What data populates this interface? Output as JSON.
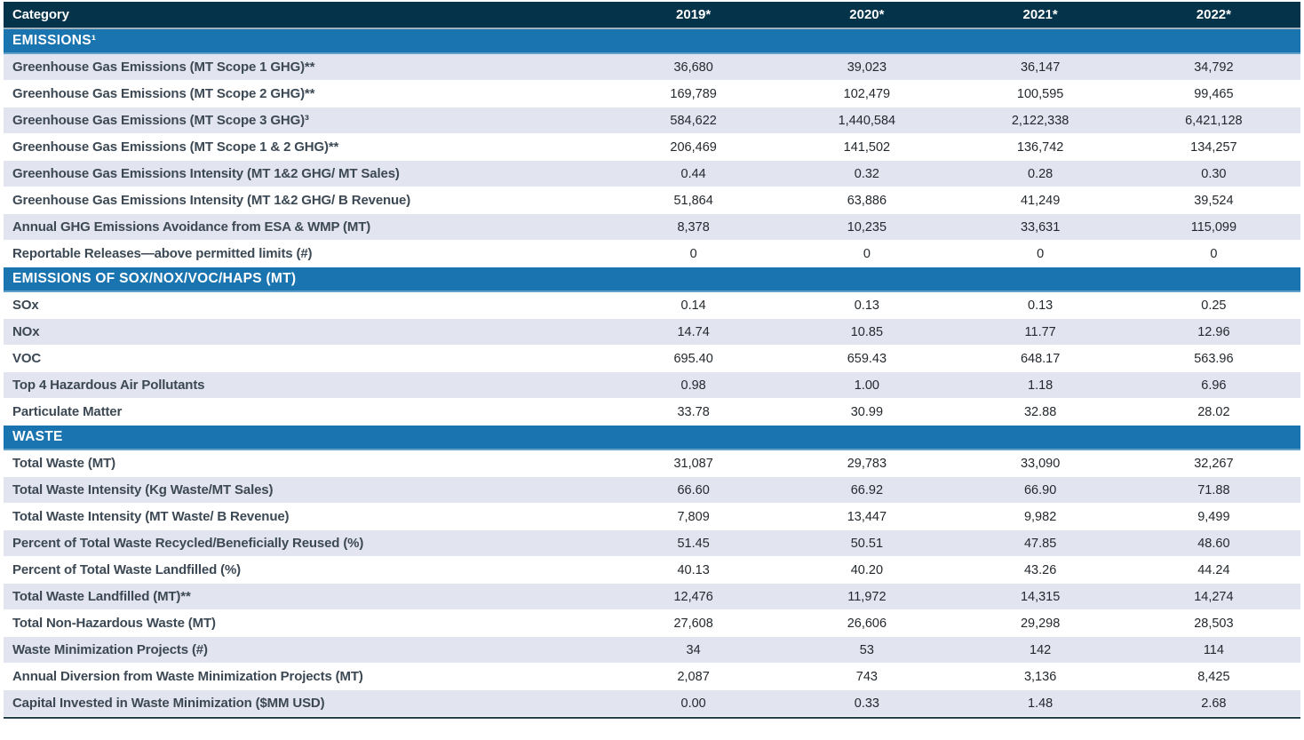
{
  "colors": {
    "header_bg": "#04334a",
    "section_bg": "#1a74af",
    "row_shaded_bg": "#e2e4ef",
    "row_plain_bg": "#ffffff",
    "header_text": "#ffffff",
    "label_text": "#3c4954",
    "value_text": "#23292e",
    "bottom_border": "#23424f"
  },
  "table": {
    "columns": [
      {
        "label": "Category"
      },
      {
        "label": "2019*"
      },
      {
        "label": "2020*"
      },
      {
        "label": "2021*"
      },
      {
        "label": "2022*"
      }
    ],
    "rows": [
      {
        "type": "section",
        "label": "EMISSIONS¹"
      },
      {
        "type": "data",
        "label": "Greenhouse Gas Emissions (MT Scope 1 GHG)**",
        "values": [
          "36,680",
          "39,023",
          "36,147",
          "34,792"
        ]
      },
      {
        "type": "data",
        "label": "Greenhouse Gas Emissions (MT Scope 2 GHG)**",
        "values": [
          "169,789",
          "102,479",
          "100,595",
          "99,465"
        ]
      },
      {
        "type": "data",
        "label": "Greenhouse Gas Emissions (MT Scope 3 GHG)³",
        "values": [
          "584,622",
          "1,440,584",
          "2,122,338",
          "6,421,128"
        ]
      },
      {
        "type": "data",
        "label": "Greenhouse Gas Emissions (MT Scope 1 & 2 GHG)**",
        "values": [
          "206,469",
          "141,502",
          "136,742",
          "134,257"
        ]
      },
      {
        "type": "data",
        "label": "Greenhouse Gas Emissions Intensity (MT 1&2 GHG/ MT Sales)",
        "values": [
          "0.44",
          "0.32",
          "0.28",
          "0.30"
        ]
      },
      {
        "type": "data",
        "label": "Greenhouse Gas Emissions Intensity (MT 1&2 GHG/ B Revenue)",
        "values": [
          "51,864",
          "63,886",
          "41,249",
          "39,524"
        ]
      },
      {
        "type": "data",
        "label": "Annual GHG Emissions Avoidance from ESA & WMP (MT)",
        "values": [
          "8,378",
          "10,235",
          "33,631",
          "115,099"
        ]
      },
      {
        "type": "data",
        "label": "Reportable Releases—above permitted limits (#)",
        "values": [
          "0",
          "0",
          "0",
          "0"
        ]
      },
      {
        "type": "section",
        "label": "EMISSIONS OF SOX/NOX/VOC/HAPS (MT)"
      },
      {
        "type": "data",
        "label": "SOx",
        "values": [
          "0.14",
          "0.13",
          "0.13",
          "0.25"
        ]
      },
      {
        "type": "data",
        "label": "NOx",
        "values": [
          "14.74",
          "10.85",
          "11.77",
          "12.96"
        ]
      },
      {
        "type": "data",
        "label": "VOC",
        "values": [
          "695.40",
          "659.43",
          "648.17",
          "563.96"
        ]
      },
      {
        "type": "data",
        "label": "Top 4 Hazardous Air Pollutants",
        "values": [
          "0.98",
          "1.00",
          "1.18",
          "6.96"
        ]
      },
      {
        "type": "data",
        "label": "Particulate Matter",
        "values": [
          "33.78",
          "30.99",
          "32.88",
          "28.02"
        ]
      },
      {
        "type": "section",
        "label": "WASTE"
      },
      {
        "type": "data",
        "label": "Total Waste (MT)",
        "values": [
          "31,087",
          "29,783",
          "33,090",
          "32,267"
        ]
      },
      {
        "type": "data",
        "label": "Total Waste Intensity (Kg Waste/MT Sales)",
        "values": [
          "66.60",
          "66.92",
          "66.90",
          "71.88"
        ]
      },
      {
        "type": "data",
        "label": "Total Waste Intensity (MT Waste/ B Revenue)",
        "values": [
          "7,809",
          "13,447",
          "9,982",
          "9,499"
        ]
      },
      {
        "type": "data",
        "label": "Percent of Total Waste Recycled/Beneficially Reused (%)",
        "values": [
          "51.45",
          "50.51",
          "47.85",
          "48.60"
        ]
      },
      {
        "type": "data",
        "label": "Percent of Total Waste Landfilled (%)",
        "values": [
          "40.13",
          "40.20",
          "43.26",
          "44.24"
        ]
      },
      {
        "type": "data",
        "label": "Total Waste Landfilled (MT)**",
        "values": [
          "12,476",
          "11,972",
          "14,315",
          "14,274"
        ]
      },
      {
        "type": "data",
        "label": "Total Non-Hazardous Waste (MT)",
        "values": [
          "27,608",
          "26,606",
          "29,298",
          "28,503"
        ]
      },
      {
        "type": "data",
        "label": "Waste Minimization Projects (#)",
        "values": [
          "34",
          "53",
          "142",
          "114"
        ]
      },
      {
        "type": "data",
        "label": "Annual Diversion from Waste Minimization Projects (MT)",
        "values": [
          "2,087",
          "743",
          "3,136",
          "8,425"
        ]
      },
      {
        "type": "data",
        "label": "Capital Invested in Waste Minimization ($MM USD)",
        "values": [
          "0.00",
          "0.33",
          "1.48",
          "2.68"
        ]
      }
    ]
  }
}
